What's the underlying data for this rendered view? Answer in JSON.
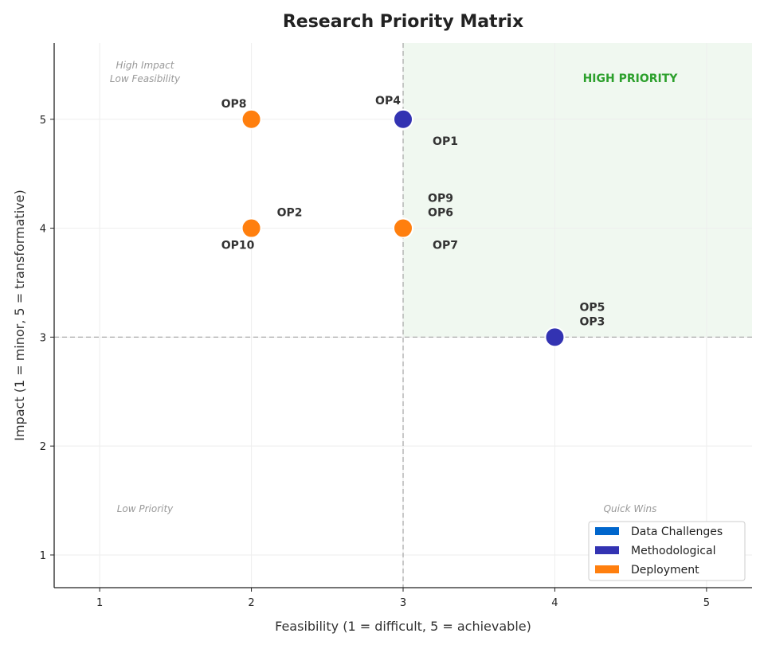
{
  "chart_data": {
    "type": "scatter",
    "title": "Research Priority Matrix",
    "xlabel": "Feasibility (1 = difficult, 5 = achievable)",
    "ylabel": "Impact (1 = minor, 5 = transformative)",
    "xlim": [
      0.7,
      5.3
    ],
    "ylim": [
      0.7,
      5.7
    ],
    "xticks": [
      1,
      2,
      3,
      4,
      5
    ],
    "yticks": [
      1,
      2,
      3,
      4,
      5
    ],
    "grid": true,
    "thresholds": {
      "x": 3,
      "y": 3
    },
    "high_priority_region": {
      "x": [
        3,
        5.3
      ],
      "y": [
        3,
        5.7
      ],
      "label": "HIGH PRIORITY",
      "color": "#2ca02c"
    },
    "quadrant_labels": {
      "top_left": "High Impact\nLow Feasibility",
      "bottom_left": "Low Priority",
      "bottom_right": "Quick Wins"
    },
    "legend": {
      "placement": "bottom-right",
      "entries": [
        {
          "name": "Data Challenges",
          "color": "#0066cc"
        },
        {
          "name": "Methodological",
          "color": "#3333b2"
        },
        {
          "name": "Deployment",
          "color": "#ff7f0e"
        }
      ]
    },
    "points": [
      {
        "label": "OP1",
        "x": 3,
        "y": 5,
        "category": "Methodological"
      },
      {
        "label": "OP2",
        "x": 2,
        "y": 4,
        "category": "Deployment"
      },
      {
        "label": "OP3",
        "x": 4,
        "y": 3,
        "category": "Methodological"
      },
      {
        "label": "OP4",
        "x": 3,
        "y": 5,
        "category": "Methodological"
      },
      {
        "label": "OP5",
        "x": 4,
        "y": 3,
        "category": "Methodological"
      },
      {
        "label": "OP6",
        "x": 3,
        "y": 4,
        "category": "Deployment"
      },
      {
        "label": "OP7",
        "x": 3,
        "y": 4,
        "category": "Deployment"
      },
      {
        "label": "OP8",
        "x": 2,
        "y": 5,
        "category": "Deployment"
      },
      {
        "label": "OP9",
        "x": 3,
        "y": 4,
        "category": "Deployment"
      },
      {
        "label": "OP10",
        "x": 2,
        "y": 4,
        "category": "Deployment"
      }
    ]
  }
}
